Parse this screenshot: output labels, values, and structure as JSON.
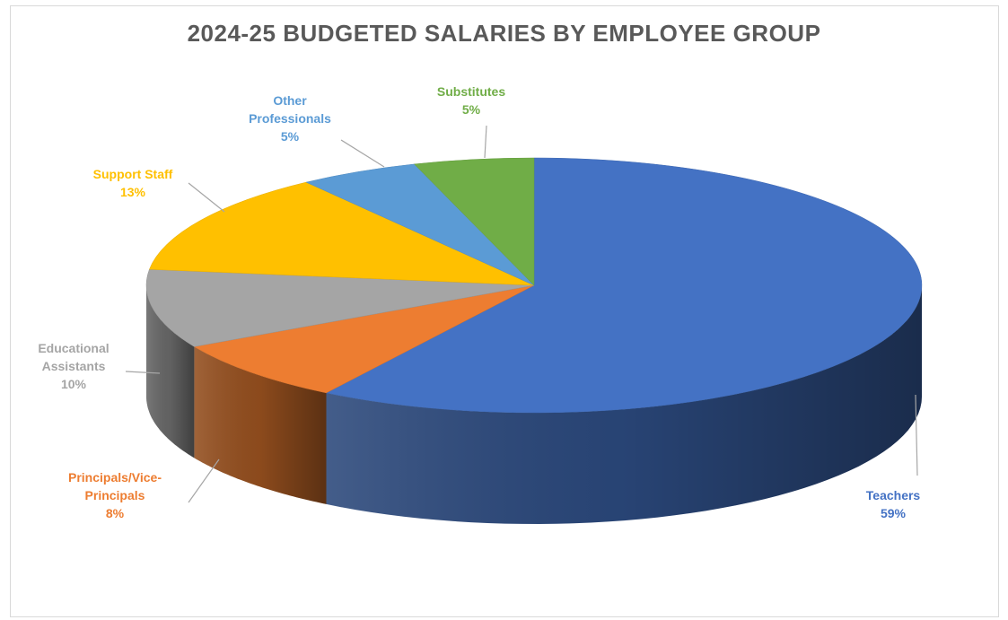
{
  "chart_data": {
    "type": "pie",
    "style": "3d",
    "title": "2024-25 BUDGETED SALARIES BY EMPLOYEE GROUP",
    "slices": [
      {
        "key": "teachers",
        "label_lines": [
          "Teachers"
        ],
        "percent_label": "59%",
        "value": 59,
        "color": "#4472C4"
      },
      {
        "key": "principals",
        "label_lines": [
          "Principals/Vice-",
          "Principals"
        ],
        "percent_label": "8%",
        "value": 8,
        "color": "#ED7D31"
      },
      {
        "key": "educational-assistants",
        "label_lines": [
          "Educational",
          "Assistants"
        ],
        "percent_label": "10%",
        "value": 10,
        "color": "#A5A5A5"
      },
      {
        "key": "support-staff",
        "label_lines": [
          "Support Staff"
        ],
        "percent_label": "13%",
        "value": 13,
        "color": "#FFC000"
      },
      {
        "key": "other-professionals",
        "label_lines": [
          "Other",
          "Professionals"
        ],
        "percent_label": "5%",
        "value": 5,
        "color": "#5B9BD5"
      },
      {
        "key": "substitutes",
        "label_lines": [
          "Substitutes"
        ],
        "percent_label": "5%",
        "value": 5,
        "color": "#70AD47"
      }
    ]
  }
}
